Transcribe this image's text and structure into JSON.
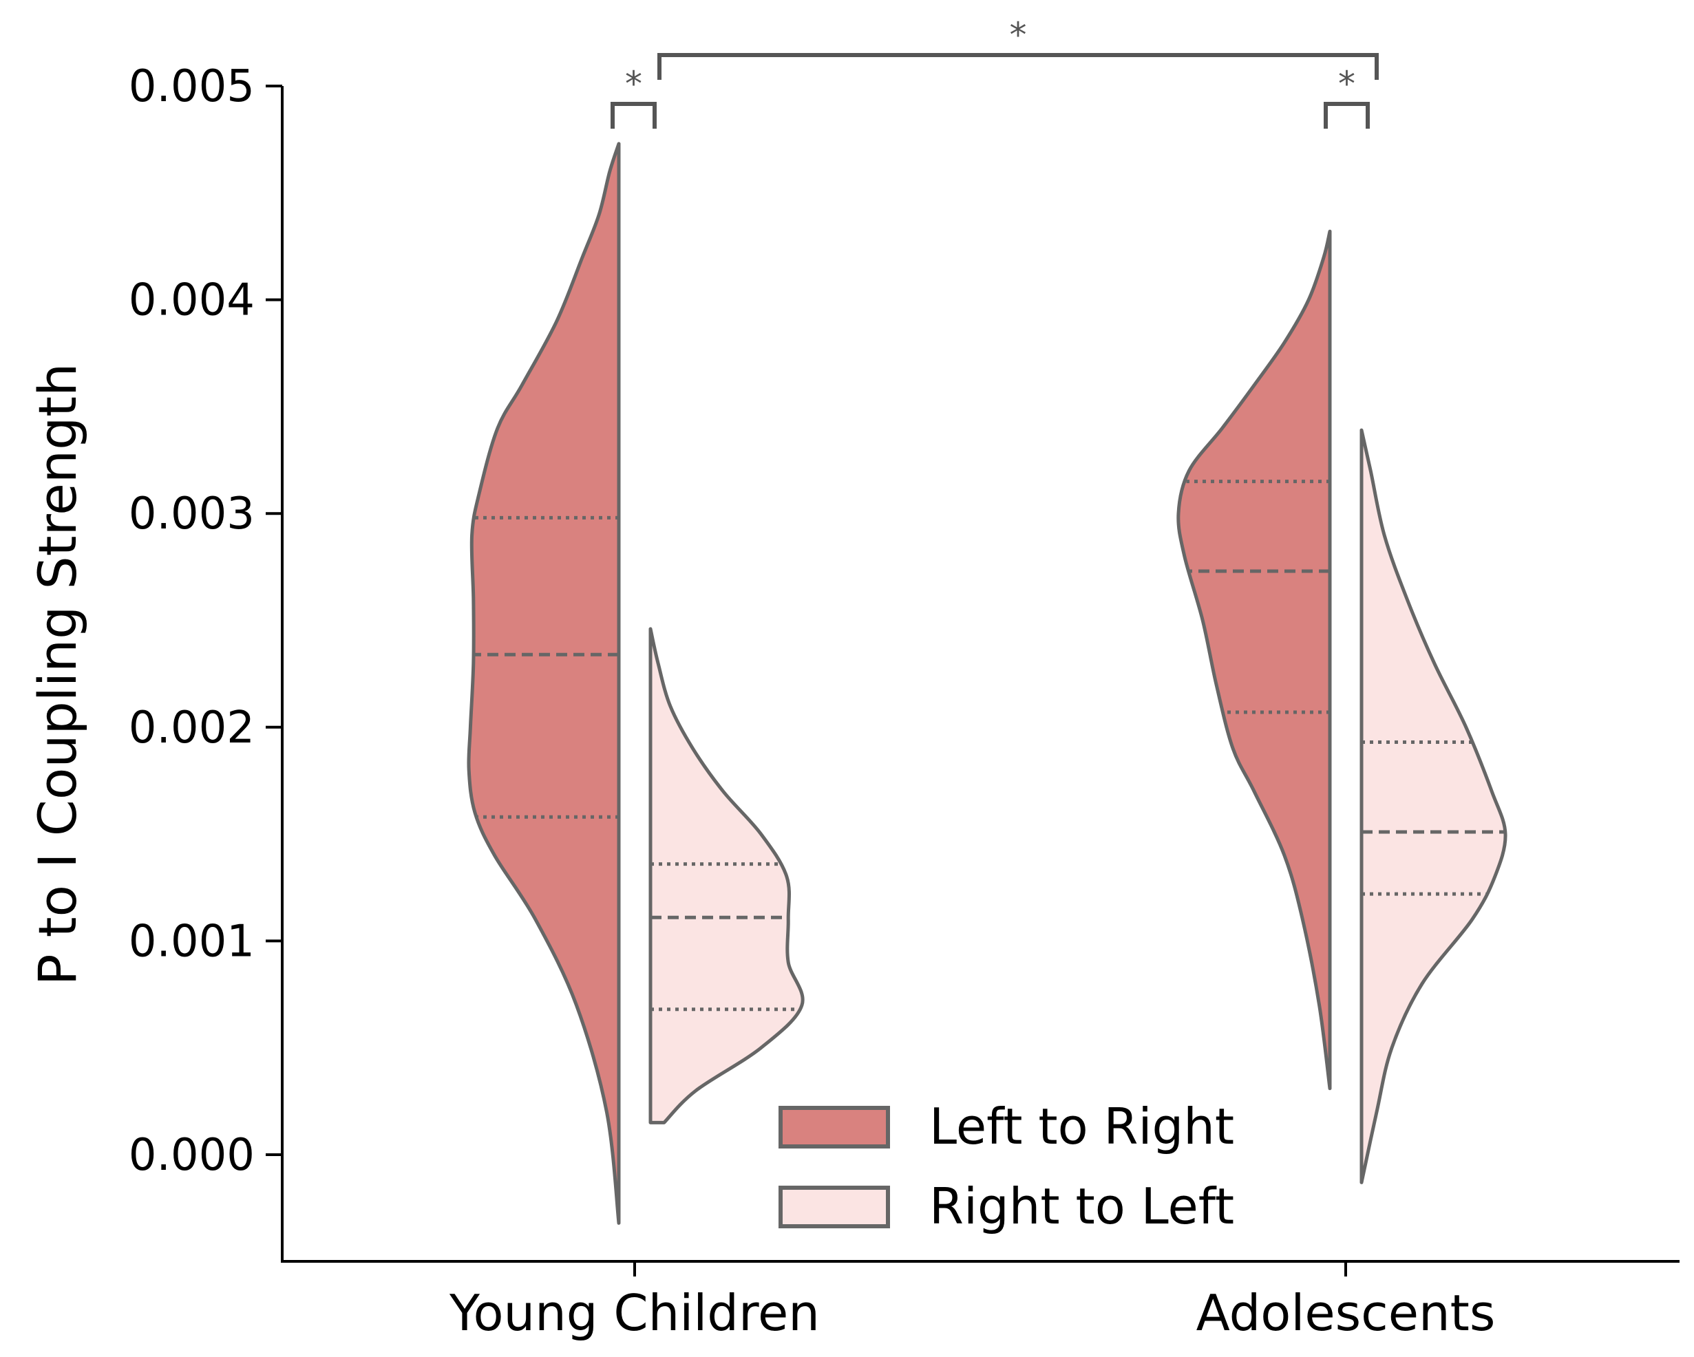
{
  "chart_data": {
    "type": "violin",
    "split": true,
    "ylabel": "P to I Coupling Strength",
    "xlabel": "",
    "ylim": [
      -0.0005,
      0.005
    ],
    "yticks": [
      "0.000",
      "0.001",
      "0.002",
      "0.003",
      "0.004",
      "0.005"
    ],
    "ytick_values": [
      0,
      0.001,
      0.002,
      0.003,
      0.004,
      0.005
    ],
    "categories": [
      "Young Children",
      "Adolescents"
    ],
    "legend_position": "lower-center",
    "series": [
      {
        "name": "Left to Right",
        "color": "#d9827f",
        "groups": [
          {
            "category": "Young Children",
            "min": -0.00032,
            "max": 0.00473,
            "q1": 0.00158,
            "median": 0.00234,
            "q3": 0.00298,
            "density": [
              [
                -0.00032,
                0.0
              ],
              [
                0.0002,
                0.08
              ],
              [
                0.0007,
                0.28
              ],
              [
                0.0011,
                0.55
              ],
              [
                0.0014,
                0.82
              ],
              [
                0.0016,
                0.95
              ],
              [
                0.0018,
                0.99
              ],
              [
                0.002,
                0.98
              ],
              [
                0.0023,
                0.96
              ],
              [
                0.0026,
                0.96
              ],
              [
                0.0029,
                0.97
              ],
              [
                0.0031,
                0.92
              ],
              [
                0.0034,
                0.8
              ],
              [
                0.0036,
                0.64
              ],
              [
                0.0039,
                0.41
              ],
              [
                0.0042,
                0.24
              ],
              [
                0.0044,
                0.13
              ],
              [
                0.0046,
                0.06
              ],
              [
                0.00473,
                0.0
              ]
            ]
          },
          {
            "category": "Adolescents",
            "min": 0.00031,
            "max": 0.00432,
            "q1": 0.00207,
            "median": 0.00273,
            "q3": 0.00315,
            "density": [
              [
                0.00031,
                0.0
              ],
              [
                0.0007,
                0.07
              ],
              [
                0.0011,
                0.18
              ],
              [
                0.0014,
                0.3
              ],
              [
                0.0017,
                0.5
              ],
              [
                0.0019,
                0.64
              ],
              [
                0.0022,
                0.75
              ],
              [
                0.0025,
                0.84
              ],
              [
                0.0028,
                0.96
              ],
              [
                0.003,
                1.0
              ],
              [
                0.0032,
                0.93
              ],
              [
                0.0034,
                0.71
              ],
              [
                0.0036,
                0.5
              ],
              [
                0.0038,
                0.3
              ],
              [
                0.004,
                0.14
              ],
              [
                0.0042,
                0.04
              ],
              [
                0.00432,
                0.0
              ]
            ]
          }
        ]
      },
      {
        "name": "Right to Left",
        "color": "#fbe4e3",
        "groups": [
          {
            "category": "Young Children",
            "min": 0.00015,
            "max": 0.00246,
            "q1": 0.00068,
            "median": 0.00111,
            "q3": 0.00136,
            "density": [
              [
                0.00015,
                0.09
              ],
              [
                0.0003,
                0.3
              ],
              [
                0.0005,
                0.73
              ],
              [
                0.0007,
                1.0
              ],
              [
                0.0009,
                0.91
              ],
              [
                0.0011,
                0.91
              ],
              [
                0.0013,
                0.9
              ],
              [
                0.0015,
                0.73
              ],
              [
                0.0017,
                0.48
              ],
              [
                0.0019,
                0.28
              ],
              [
                0.0021,
                0.13
              ],
              [
                0.0023,
                0.05
              ],
              [
                0.00246,
                0.0
              ]
            ]
          },
          {
            "category": "Adolescents",
            "min": -0.00013,
            "max": 0.00339,
            "q1": 0.00122,
            "median": 0.00151,
            "q3": 0.00193,
            "density": [
              [
                -0.00013,
                0.0
              ],
              [
                0.0002,
                0.1
              ],
              [
                0.0005,
                0.2
              ],
              [
                0.0008,
                0.4
              ],
              [
                0.0011,
                0.73
              ],
              [
                0.0013,
                0.88
              ],
              [
                0.0015,
                0.95
              ],
              [
                0.0017,
                0.86
              ],
              [
                0.002,
                0.69
              ],
              [
                0.0023,
                0.48
              ],
              [
                0.0026,
                0.3
              ],
              [
                0.0029,
                0.15
              ],
              [
                0.0032,
                0.06
              ],
              [
                0.00339,
                0.0
              ]
            ]
          }
        ]
      }
    ],
    "annotations": [
      {
        "type": "bracket",
        "between": [
          "Young Children Left to Right",
          "Young Children Right to Left"
        ],
        "label": "*"
      },
      {
        "type": "bracket",
        "between": [
          "Adolescents Left to Right",
          "Adolescents Right to Left"
        ],
        "label": "*"
      },
      {
        "type": "bracket",
        "between": [
          "Young Children",
          "Adolescents"
        ],
        "label": "*"
      }
    ]
  }
}
